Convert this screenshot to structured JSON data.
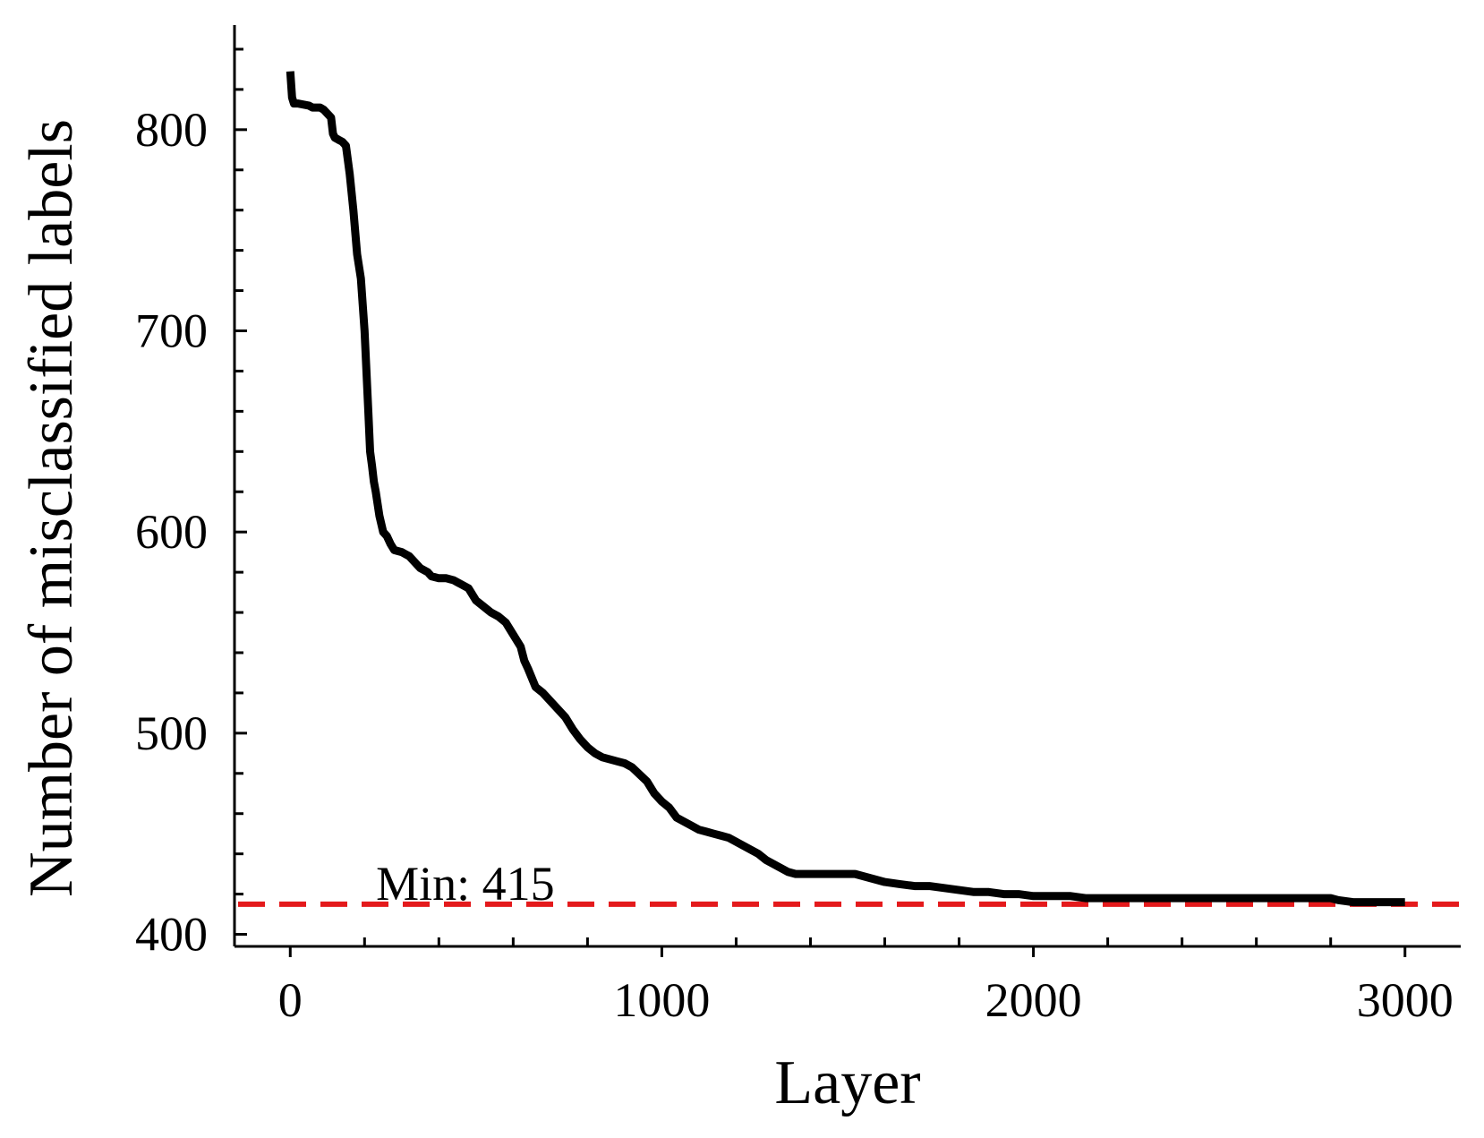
{
  "chart_data": {
    "type": "line",
    "title": "",
    "xlabel": "Layer",
    "ylabel": "Number of misclassified labels",
    "xlim": [
      -150,
      3150
    ],
    "ylim": [
      394,
      852
    ],
    "grid": false,
    "legend": "none",
    "x_ticks": [
      0,
      1000,
      2000,
      3000
    ],
    "x_tick_labels": [
      "0",
      "1000",
      "2000",
      "3000"
    ],
    "y_ticks": [
      400,
      500,
      600,
      700,
      800
    ],
    "y_tick_labels": [
      "400",
      "500",
      "600",
      "700",
      "800"
    ],
    "colors": {
      "line": "#000000",
      "min_line": "#e41a1c",
      "axis": "#000000"
    },
    "series": [
      {
        "x": [
          0,
          5,
          10,
          20,
          50,
          60,
          80,
          90,
          100,
          110,
          115,
          120,
          130,
          140,
          150,
          160,
          170,
          180,
          190,
          200,
          210,
          215,
          220,
          225,
          230,
          240,
          250,
          260,
          270,
          280,
          300,
          310,
          320,
          340,
          350,
          370,
          380,
          400,
          420,
          440,
          460,
          480,
          500,
          520,
          540,
          560,
          580,
          590,
          620,
          630,
          640,
          660,
          680,
          700,
          720,
          740,
          760,
          780,
          800,
          820,
          840,
          860,
          880,
          900,
          920,
          960,
          980,
          1000,
          1020,
          1040,
          1060,
          1080,
          1100,
          1120,
          1140,
          1160,
          1180,
          1200,
          1220,
          1240,
          1260,
          1280,
          1300,
          1320,
          1340,
          1360,
          1380,
          1400,
          1440,
          1480,
          1520,
          1560,
          1600,
          1640,
          1680,
          1720,
          1760,
          1800,
          1840,
          1880,
          1920,
          1960,
          2000,
          2060,
          2100,
          2140,
          2160,
          2200,
          2300,
          2400,
          2500,
          2600,
          2700,
          2780,
          2800,
          2820,
          2860,
          2900,
          2960,
          3000
        ],
        "y": [
          829,
          816,
          813,
          813,
          812,
          811,
          811,
          810,
          808,
          806,
          798,
          796,
          795,
          794,
          792,
          778,
          760,
          738,
          726,
          700,
          660,
          640,
          633,
          625,
          620,
          608,
          600,
          598,
          594,
          591,
          590,
          589,
          588,
          584,
          582,
          580,
          578,
          577,
          577,
          576,
          574,
          572,
          566,
          563,
          560,
          558,
          555,
          552,
          543,
          536,
          532,
          523,
          520,
          516,
          512,
          508,
          502,
          497,
          493,
          490,
          488,
          487,
          486,
          485,
          483,
          476,
          470,
          466,
          463,
          458,
          456,
          454,
          452,
          451,
          450,
          449,
          448,
          446,
          444,
          442,
          440,
          437,
          435,
          433,
          431,
          430,
          430,
          430,
          430,
          430,
          430,
          428,
          426,
          425,
          424,
          424,
          423,
          422,
          421,
          421,
          420,
          420,
          419,
          419,
          419,
          418,
          418,
          418,
          418,
          418,
          418,
          418,
          418,
          418,
          418,
          417,
          416,
          416,
          416,
          416
        ]
      }
    ],
    "reference_line": {
      "y": 415,
      "style": "dashed"
    },
    "annotation": {
      "text": "Min: 415",
      "x": 700,
      "y": 418
    }
  }
}
